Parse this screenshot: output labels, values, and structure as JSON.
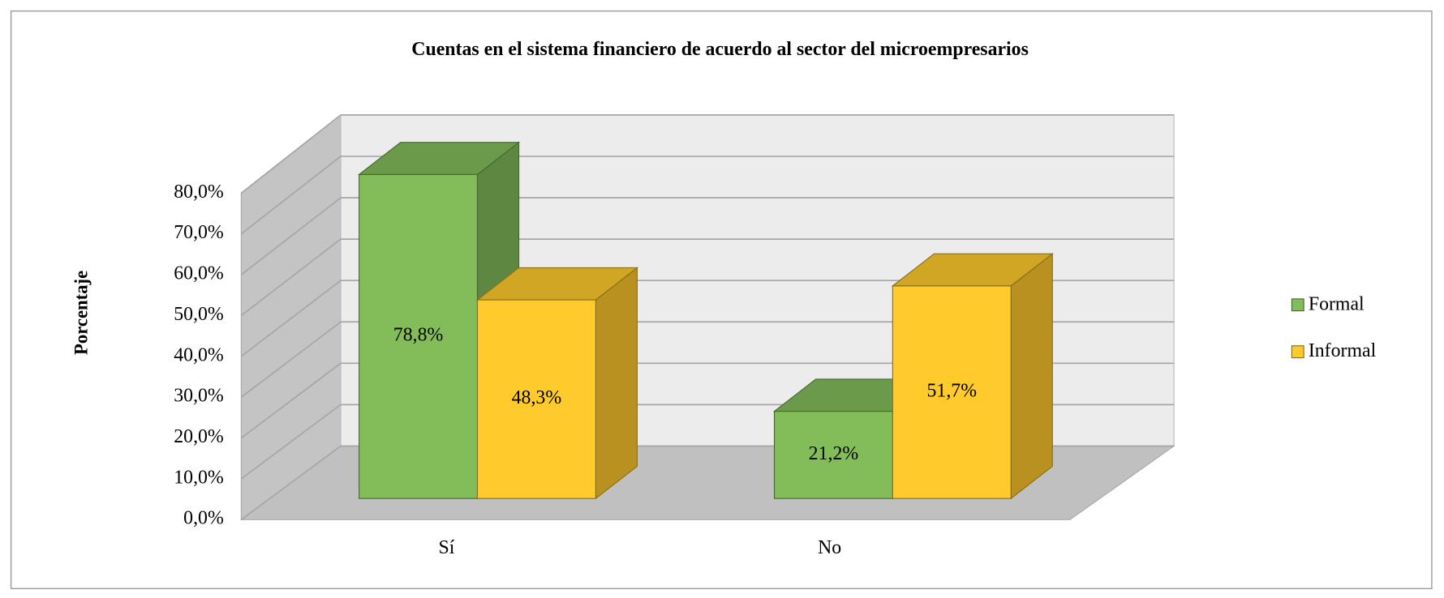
{
  "chart_data": {
    "type": "bar3d",
    "title": "Cuentas en el sistema financiero de acuerdo al sector del microempresarios",
    "y_label": "Porcentaje",
    "categories": [
      "Sí",
      "No"
    ],
    "series": [
      {
        "name": "Formal",
        "color": "#82bd5a",
        "values": [
          78.8,
          21.2
        ],
        "value_labels": [
          "78,8%",
          "21,2%"
        ]
      },
      {
        "name": "Informal",
        "color": "#ffca2c",
        "values": [
          48.3,
          51.7
        ],
        "value_labels": [
          "48,3%",
          "51,7%"
        ]
      }
    ],
    "ylim": [
      0,
      80
    ],
    "yticks": [
      {
        "value": 0,
        "label": "0,0%"
      },
      {
        "value": 10,
        "label": "10,0%"
      },
      {
        "value": 20,
        "label": "20,0%"
      },
      {
        "value": 30,
        "label": "30,0%"
      },
      {
        "value": 40,
        "label": "40,0%"
      },
      {
        "value": 50,
        "label": "50,0%"
      },
      {
        "value": 60,
        "label": "60,0%"
      },
      {
        "value": 70,
        "label": "70,0%"
      },
      {
        "value": 80,
        "label": "80,0%"
      }
    ],
    "grid": true,
    "legend": "right"
  }
}
